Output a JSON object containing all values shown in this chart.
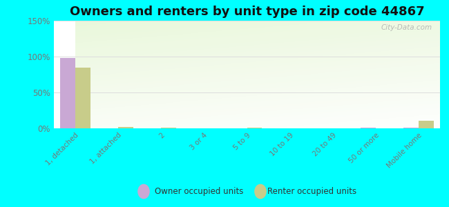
{
  "title": "Owners and renters by unit type in zip code 44867",
  "categories": [
    "1, detached",
    "1, attached",
    "2",
    "3 or 4",
    "5 to 9",
    "10 to 19",
    "20 to 49",
    "50 or more",
    "Mobile home"
  ],
  "owner_values": [
    98,
    0,
    0,
    0,
    0,
    0,
    0,
    1,
    1
  ],
  "renter_values": [
    85,
    2,
    1,
    0,
    1,
    0,
    0,
    0,
    11
  ],
  "owner_color": "#c9a8d4",
  "renter_color": "#c8cc8a",
  "outer_background": "#00ffff",
  "ylim": [
    0,
    150
  ],
  "yticks": [
    0,
    50,
    100,
    150
  ],
  "ytick_labels": [
    "0%",
    "50%",
    "100%",
    "150%"
  ],
  "bar_width": 0.35,
  "title_fontsize": 13,
  "watermark": "City-Data.com",
  "legend_labels": [
    "Owner occupied units",
    "Renter occupied units"
  ],
  "grid_color": "#dddddd",
  "tick_color": "#777777"
}
